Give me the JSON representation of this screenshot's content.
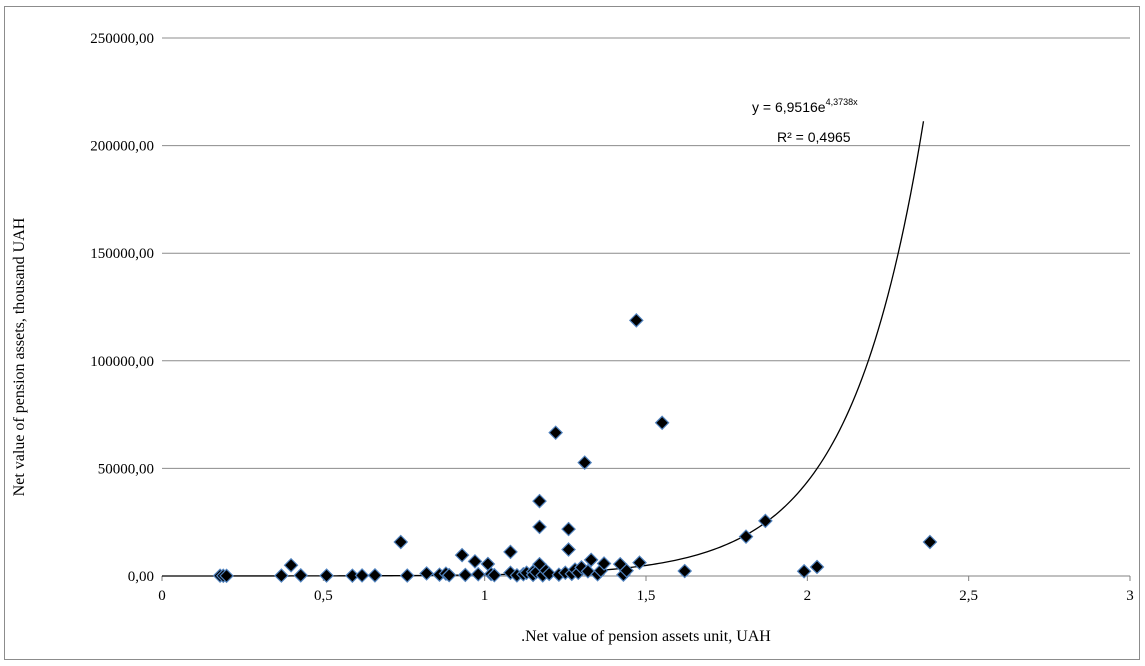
{
  "chart_data": {
    "type": "scatter",
    "xlabel": ".Net value of pension assets unit, UAH",
    "ylabel": "Net value of pension assets, thousand UAH",
    "xlim": [
      0,
      3
    ],
    "ylim": [
      0,
      250000
    ],
    "x_ticks": [
      "0",
      "0,5",
      "1",
      "1,5",
      "2",
      "2,5",
      "3"
    ],
    "y_ticks": [
      "0,00",
      "50000,00",
      "100000,00",
      "150000,00",
      "200000,00",
      "250000,00"
    ],
    "grid": "horizontal",
    "marker": "diamond",
    "marker_color": "#000000",
    "marker_edge_color": "#4f81bd",
    "trendline": {
      "type": "exponential",
      "a": 6.9516,
      "b": 4.3738,
      "equation_prefix": "y = 6,9516e",
      "equation_exponent": "4,3738x",
      "r_squared": "R² = 0,4965"
    },
    "points": [
      [
        0.18,
        150
      ],
      [
        0.19,
        100
      ],
      [
        0.2,
        80
      ],
      [
        0.37,
        200
      ],
      [
        0.4,
        5000
      ],
      [
        0.43,
        300
      ],
      [
        0.51,
        200
      ],
      [
        0.59,
        150
      ],
      [
        0.62,
        250
      ],
      [
        0.66,
        300
      ],
      [
        0.74,
        15800
      ],
      [
        0.76,
        200
      ],
      [
        0.82,
        1200
      ],
      [
        0.86,
        600
      ],
      [
        0.88,
        1100
      ],
      [
        0.89,
        400
      ],
      [
        0.93,
        9700
      ],
      [
        0.94,
        500
      ],
      [
        0.97,
        6800
      ],
      [
        0.98,
        800
      ],
      [
        1.01,
        5600
      ],
      [
        1.02,
        900
      ],
      [
        1.03,
        400
      ],
      [
        1.08,
        11200
      ],
      [
        1.08,
        1500
      ],
      [
        1.1,
        300
      ],
      [
        1.12,
        800
      ],
      [
        1.13,
        1500
      ],
      [
        1.15,
        2000
      ],
      [
        1.15,
        500
      ],
      [
        1.16,
        1800
      ],
      [
        1.17,
        34800
      ],
      [
        1.17,
        22800
      ],
      [
        1.17,
        5500
      ],
      [
        1.18,
        300
      ],
      [
        1.19,
        2500
      ],
      [
        1.2,
        1000
      ],
      [
        1.22,
        66600
      ],
      [
        1.23,
        600
      ],
      [
        1.25,
        1500
      ],
      [
        1.26,
        21800
      ],
      [
        1.26,
        12300
      ],
      [
        1.27,
        1000
      ],
      [
        1.28,
        3000
      ],
      [
        1.29,
        1500
      ],
      [
        1.3,
        4000
      ],
      [
        1.31,
        52700
      ],
      [
        1.32,
        2200
      ],
      [
        1.33,
        7500
      ],
      [
        1.35,
        800
      ],
      [
        1.36,
        2500
      ],
      [
        1.37,
        5800
      ],
      [
        1.42,
        5500
      ],
      [
        1.43,
        600
      ],
      [
        1.44,
        2500
      ],
      [
        1.47,
        118800
      ],
      [
        1.48,
        6200
      ],
      [
        1.55,
        71200
      ],
      [
        1.62,
        2300
      ],
      [
        1.81,
        18300
      ],
      [
        1.87,
        25600
      ],
      [
        1.99,
        2200
      ],
      [
        2.03,
        4200
      ],
      [
        2.38,
        15800
      ]
    ]
  }
}
